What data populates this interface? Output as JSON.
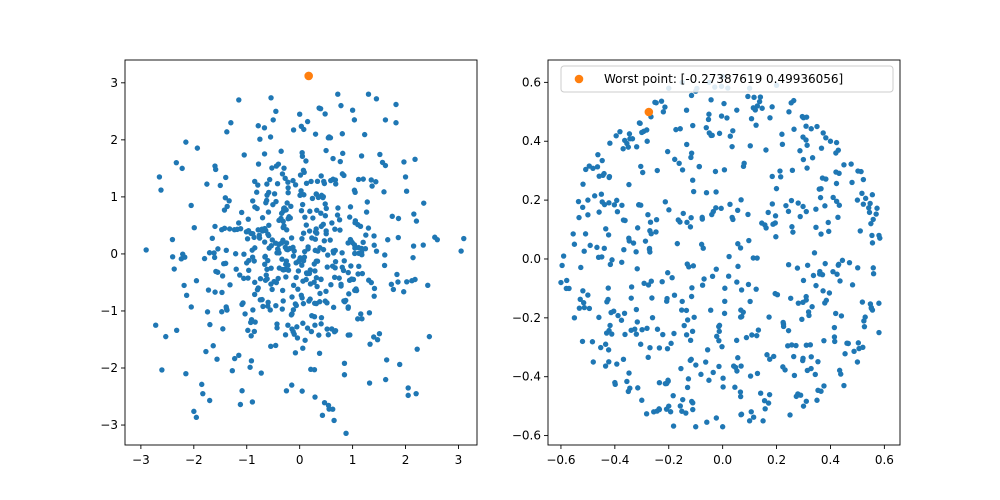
{
  "colors": {
    "main": "#1f77b4",
    "highlight": "#ff7f0e",
    "axis": "#000000",
    "background": "#ffffff"
  },
  "chart_data": [
    {
      "type": "scatter",
      "title": "",
      "xlabel": "",
      "ylabel": "",
      "xlim": [
        -3.3,
        3.35
      ],
      "ylim": [
        -3.35,
        3.4
      ],
      "xticks": [
        -3,
        -2,
        -1,
        0,
        1,
        2,
        3
      ],
      "yticks": [
        -3,
        -2,
        -1,
        0,
        1,
        2,
        3
      ],
      "xtick_labels": [
        "−3",
        "−2",
        "−1",
        "0",
        "1",
        "2",
        "3"
      ],
      "ytick_labels": [
        "−3",
        "−2",
        "−1",
        "0",
        "1",
        "2",
        "3"
      ],
      "grid": false,
      "legend": null,
      "sample_distribution": {
        "kind": "gaussian",
        "count": 500,
        "center": [
          0,
          0
        ],
        "std": 1
      },
      "highlight_points": [
        {
          "x": 0.17,
          "y": 3.12
        }
      ],
      "series": [
        {
          "color": "#1f77b4",
          "points": [
            [
              -2.9,
              0.07
            ],
            [
              -2.72,
              -1.25
            ],
            [
              -2.65,
              1.35
            ],
            [
              -2.62,
              1.12
            ],
            [
              -2.53,
              -1.45
            ],
            [
              -2.4,
              -0.05
            ],
            [
              -2.33,
              1.6
            ],
            [
              -2.22,
              1.5
            ],
            [
              -2.15,
              1.96
            ],
            [
              -2.15,
              -2.1
            ],
            [
              -2.05,
              0.85
            ],
            [
              -1.95,
              -0.47
            ],
            [
              -1.83,
              -2.45
            ],
            [
              -1.7,
              -2.57
            ],
            [
              -1.5,
              1.2
            ],
            [
              -1.3,
              2.3
            ],
            [
              -1.15,
              2.7
            ],
            [
              -1.12,
              -2.64
            ],
            [
              -0.55,
              2.05
            ],
            [
              -0.5,
              2.35
            ],
            [
              -0.45,
              2.5
            ],
            [
              -0.35,
              1.8
            ],
            [
              -0.25,
              -2.4
            ],
            [
              -0.15,
              -2.3
            ],
            [
              0.0,
              2.45
            ],
            [
              0.15,
              2.32
            ],
            [
              0.3,
              2.1
            ],
            [
              0.43,
              -2.83
            ],
            [
              0.65,
              -2.92
            ],
            [
              0.72,
              2.8
            ],
            [
              0.78,
              2.6
            ],
            [
              1.0,
              2.52
            ],
            [
              1.3,
              2.8
            ],
            [
              1.45,
              2.72
            ],
            [
              1.62,
              2.35
            ],
            [
              1.82,
              2.3
            ],
            [
              1.82,
              2.62
            ],
            [
              1.62,
              1.55
            ],
            [
              2.0,
              1.35
            ],
            [
              2.02,
              1.1
            ],
            [
              2.12,
              -0.47
            ],
            [
              2.05,
              -2.35
            ],
            [
              2.05,
              -2.48
            ],
            [
              2.22,
              -1.67
            ],
            [
              2.45,
              -1.45
            ],
            [
              2.42,
              -0.55
            ],
            [
              2.6,
              0.25
            ],
            [
              3.05,
              0.05
            ],
            [
              3.1,
              0.27
            ],
            [
              2.2,
              -2.45
            ]
          ]
        }
      ]
    },
    {
      "type": "scatter",
      "title": "",
      "xlabel": "",
      "ylabel": "",
      "xlim": [
        -0.648,
        0.658
      ],
      "ylim": [
        -0.632,
        0.676
      ],
      "xticks": [
        -0.6,
        -0.4,
        -0.2,
        0.0,
        0.2,
        0.4,
        0.6
      ],
      "yticks": [
        -0.6,
        -0.4,
        -0.2,
        0.0,
        0.2,
        0.4,
        0.6
      ],
      "xtick_labels": [
        "−0.6",
        "−0.4",
        "−0.2",
        "0.0",
        "0.2",
        "0.4",
        "0.6"
      ],
      "ytick_labels": [
        "−0.6",
        "−0.4",
        "−0.2",
        "0.0",
        "0.2",
        "0.4",
        "0.6"
      ],
      "grid": false,
      "legend": {
        "placement": "top-right",
        "entries": [
          {
            "label": "Worst point: [-0.27387619  0.49936056]",
            "color": "#ff7f0e",
            "marker": "circle"
          }
        ]
      },
      "sample_distribution": {
        "kind": "uniform-disk",
        "count": 500,
        "center": [
          0,
          0
        ],
        "radius": 0.6
      },
      "highlight_points": [
        {
          "x": -0.27387619,
          "y": 0.49936056
        }
      ],
      "series": [
        {
          "color": "#1f77b4",
          "points": [
            [
              -0.6,
              -0.08
            ],
            [
              -0.59,
              0.01
            ],
            [
              -0.58,
              -0.1
            ],
            [
              -0.55,
              0.05
            ],
            [
              -0.5,
              0.15
            ],
            [
              -0.45,
              0.22
            ],
            [
              -0.42,
              0.28
            ],
            [
              -0.35,
              0.38
            ],
            [
              -0.3,
              0.43
            ],
            [
              -0.22,
              0.5
            ],
            [
              -0.2,
              0.58
            ],
            [
              -0.15,
              0.6
            ],
            [
              -0.1,
              0.57
            ],
            [
              0.0,
              0.62
            ],
            [
              0.1,
              0.58
            ],
            [
              0.2,
              0.59
            ],
            [
              0.3,
              0.48
            ],
            [
              0.4,
              0.4
            ],
            [
              0.45,
              0.32
            ],
            [
              0.5,
              0.2
            ],
            [
              0.55,
              0.12
            ],
            [
              0.58,
              0.08
            ],
            [
              0.56,
              -0.05
            ],
            [
              0.58,
              -0.25
            ],
            [
              0.5,
              -0.35
            ],
            [
              0.45,
              -0.43
            ],
            [
              0.35,
              -0.48
            ],
            [
              0.25,
              -0.53
            ],
            [
              0.15,
              -0.55
            ],
            [
              0.0,
              -0.57
            ],
            [
              -0.1,
              -0.57
            ],
            [
              -0.2,
              -0.5
            ],
            [
              -0.3,
              -0.48
            ],
            [
              -0.4,
              -0.42
            ],
            [
              -0.48,
              -0.35
            ],
            [
              -0.55,
              -0.2
            ],
            [
              -0.57,
              -0.1
            ],
            [
              -0.44,
              0.29
            ],
            [
              -0.28,
              0.4
            ],
            [
              0.14,
              0.55
            ],
            [
              0.35,
              0.45
            ],
            [
              0.48,
              0.26
            ],
            [
              0.52,
              -0.3
            ],
            [
              -0.52,
              -0.28
            ],
            [
              -0.35,
              -0.45
            ],
            [
              0.1,
              -0.55
            ],
            [
              0.42,
              0.36
            ],
            [
              -0.5,
              0.2
            ],
            [
              0.3,
              -0.5
            ],
            [
              -0.05,
              0.6
            ]
          ]
        }
      ]
    }
  ]
}
